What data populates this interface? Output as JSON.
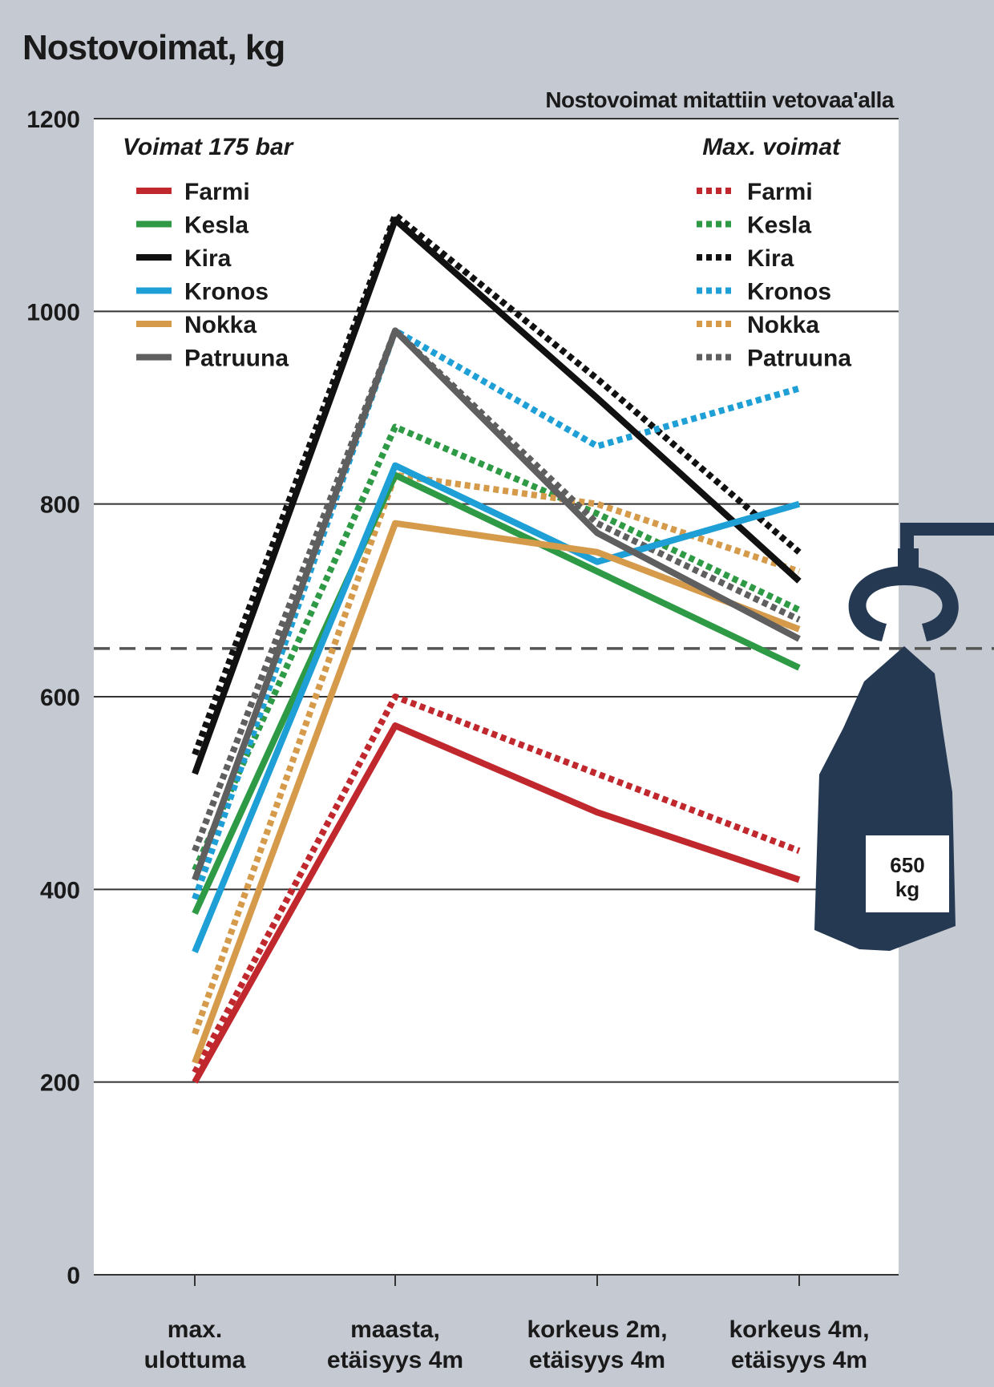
{
  "chart_data": {
    "type": "line",
    "title": "Nostovoimat, kg",
    "note": "Nostovoimat mitattiin vetovaa'alla",
    "categories": [
      [
        "max.",
        "ulottuma"
      ],
      [
        "maasta,",
        "etäisyys 4m"
      ],
      [
        "korkeus 2m,",
        "etäisyys 4m"
      ],
      [
        "korkeus 4m,",
        "etäisyys 4m"
      ]
    ],
    "ylim": [
      0,
      1200
    ],
    "yticks": [
      0,
      200,
      400,
      600,
      800,
      1000,
      1200
    ],
    "grid": true,
    "legend_solid_title": "Voimat 175 bar",
    "legend_dotted_title": "Max. voimat",
    "reference_line": {
      "value": 650,
      "style": "dashed"
    },
    "weight_label": [
      "650",
      "kg"
    ],
    "colors": {
      "Farmi": "#c0282e",
      "Kesla": "#2f9a45",
      "Kira": "#111111",
      "Kronos": "#1e9fd6",
      "Nokka": "#d59a4a",
      "Patruuna": "#5f5f5f"
    },
    "series_solid": [
      {
        "name": "Farmi",
        "values": [
          200,
          570,
          480,
          410
        ]
      },
      {
        "name": "Kesla",
        "values": [
          375,
          830,
          730,
          630
        ]
      },
      {
        "name": "Kira",
        "values": [
          520,
          1095,
          910,
          720
        ]
      },
      {
        "name": "Kronos",
        "values": [
          335,
          840,
          740,
          800
        ]
      },
      {
        "name": "Nokka",
        "values": [
          220,
          780,
          750,
          670
        ]
      },
      {
        "name": "Patruuna",
        "values": [
          410,
          980,
          770,
          660
        ]
      }
    ],
    "series_dotted": [
      {
        "name": "Farmi",
        "values": [
          210,
          600,
          520,
          440
        ]
      },
      {
        "name": "Kesla",
        "values": [
          420,
          880,
          790,
          690
        ]
      },
      {
        "name": "Kira",
        "values": [
          540,
          1100,
          930,
          750
        ]
      },
      {
        "name": "Kronos",
        "values": [
          390,
          980,
          860,
          920
        ]
      },
      {
        "name": "Nokka",
        "values": [
          250,
          830,
          800,
          730
        ]
      },
      {
        "name": "Patruuna",
        "values": [
          440,
          980,
          780,
          680
        ]
      }
    ]
  }
}
